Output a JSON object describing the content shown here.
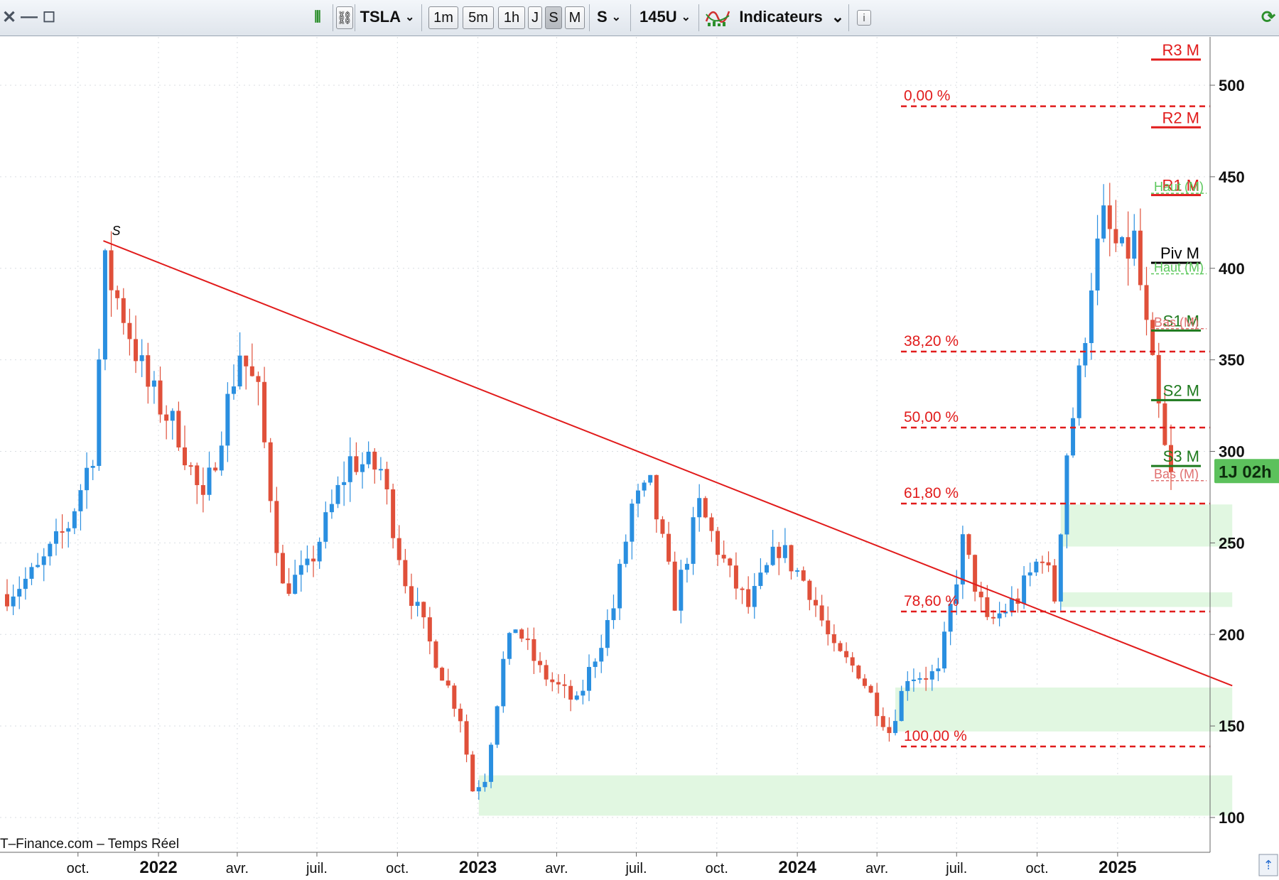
{
  "toolbar": {
    "symbol": "TSLA",
    "timeframes": [
      "1m",
      "5m",
      "1h",
      "J",
      "S",
      "M"
    ],
    "active_timeframe": "S",
    "period": "S",
    "units": "145U",
    "indicators_label": "Indicateurs",
    "info_label": "i"
  },
  "footer": {
    "source": "T–Finance.com – Temps Réel"
  },
  "chart_data": {
    "type": "candlestick",
    "y_axis": {
      "ticks": [
        100,
        150,
        200,
        250,
        300,
        350,
        400,
        450,
        500
      ],
      "range": [
        95,
        525
      ]
    },
    "x_axis": {
      "labels": [
        {
          "label": "oct.",
          "date": "2021-10-01",
          "bold": false
        },
        {
          "label": "2022",
          "date": "2022-01-01",
          "bold": true
        },
        {
          "label": "avr.",
          "date": "2022-04-01",
          "bold": false
        },
        {
          "label": "juil.",
          "date": "2022-07-01",
          "bold": false
        },
        {
          "label": "oct.",
          "date": "2022-10-01",
          "bold": false
        },
        {
          "label": "2023",
          "date": "2023-01-01",
          "bold": true
        },
        {
          "label": "avr.",
          "date": "2023-04-01",
          "bold": false
        },
        {
          "label": "juil.",
          "date": "2023-07-01",
          "bold": false
        },
        {
          "label": "oct.",
          "date": "2023-10-01",
          "bold": false
        },
        {
          "label": "2024",
          "date": "2024-01-01",
          "bold": true
        },
        {
          "label": "avr.",
          "date": "2024-04-01",
          "bold": false
        },
        {
          "label": "juil.",
          "date": "2024-07-01",
          "bold": false
        },
        {
          "label": "oct.",
          "date": "2024-10-01",
          "bold": false
        },
        {
          "label": "2025",
          "date": "2025-01-01",
          "bold": true
        }
      ]
    },
    "price_path": [
      [
        "2021-07-12",
        222
      ],
      [
        "2021-08-16",
        235
      ],
      [
        "2021-09-20",
        260
      ],
      [
        "2021-10-18",
        300
      ],
      [
        "2021-11-01",
        400
      ],
      [
        "2021-11-22",
        375
      ],
      [
        "2021-12-20",
        335
      ],
      [
        "2022-01-24",
        310
      ],
      [
        "2022-02-21",
        270
      ],
      [
        "2022-04-04",
        355
      ],
      [
        "2022-04-25",
        330
      ],
      [
        "2022-05-23",
        225
      ],
      [
        "2022-06-20",
        235
      ],
      [
        "2022-08-08",
        295
      ],
      [
        "2022-09-12",
        290
      ],
      [
        "2022-10-10",
        230
      ],
      [
        "2022-11-07",
        195
      ],
      [
        "2022-12-12",
        155
      ],
      [
        "2022-12-26",
        115
      ],
      [
        "2023-01-09",
        122
      ],
      [
        "2023-01-30",
        185
      ],
      [
        "2023-02-13",
        205
      ],
      [
        "2023-03-13",
        180
      ],
      [
        "2023-04-24",
        162
      ],
      [
        "2023-06-05",
        215
      ],
      [
        "2023-06-26",
        270
      ],
      [
        "2023-07-17",
        280
      ],
      [
        "2023-08-14",
        218
      ],
      [
        "2023-09-11",
        270
      ],
      [
        "2023-10-16",
        232
      ],
      [
        "2023-11-06",
        215
      ],
      [
        "2023-12-11",
        248
      ],
      [
        "2024-01-15",
        225
      ],
      [
        "2024-02-12",
        190
      ],
      [
        "2024-03-11",
        180
      ],
      [
        "2024-04-15",
        147
      ],
      [
        "2024-05-06",
        178
      ],
      [
        "2024-06-10",
        178
      ],
      [
        "2024-07-08",
        250
      ],
      [
        "2024-08-05",
        205
      ],
      [
        "2024-09-09",
        220
      ],
      [
        "2024-10-07",
        245
      ],
      [
        "2024-10-21",
        220
      ],
      [
        "2024-11-04",
        300
      ],
      [
        "2024-11-18",
        340
      ],
      [
        "2024-12-02",
        395
      ],
      [
        "2024-12-16",
        425
      ],
      [
        "2025-01-06",
        405
      ],
      [
        "2025-01-20",
        415
      ],
      [
        "2025-02-03",
        365
      ],
      [
        "2025-02-24",
        300
      ],
      [
        "2025-03-03",
        285
      ]
    ],
    "trendline": {
      "start": [
        "2021-10-30",
        415
      ],
      "end": [
        "2025-05-12",
        172
      ],
      "label": "S"
    },
    "fibonacci": [
      {
        "label": "0,00 %",
        "value": 488.5
      },
      {
        "label": "38,20 %",
        "value": 354.5
      },
      {
        "label": "50,00 %",
        "value": 313
      },
      {
        "label": "61,80 %",
        "value": 271.5
      },
      {
        "label": "78,60 %",
        "value": 212.5
      },
      {
        "label": "100,00 %",
        "value": 138.8
      }
    ],
    "pivots": [
      {
        "label": "R3 M",
        "value": 514,
        "color": "#e11b1b"
      },
      {
        "label": "R2 M",
        "value": 477,
        "color": "#e11b1b"
      },
      {
        "label": "R1 M",
        "value": 440,
        "color": "#e11b1b"
      },
      {
        "label": "Piv M",
        "value": 403,
        "color": "#000000"
      },
      {
        "label": "S1 M",
        "value": 366,
        "color": "#1e7a1e"
      },
      {
        "label": "S2 M",
        "value": 328,
        "color": "#1e7a1e"
      },
      {
        "label": "S3 M",
        "value": 292,
        "color": "#1e7a1e"
      }
    ],
    "hl_lines": [
      {
        "label": "Haut (M)",
        "value": 441,
        "color": "#5bc85b"
      },
      {
        "label": "Haut (M)",
        "value": 397,
        "color": "#5bc85b"
      },
      {
        "label": "Bas (M)",
        "value": 367,
        "color": "#e07070"
      },
      {
        "label": "Bas (M)",
        "value": 284,
        "color": "#e07070"
      }
    ],
    "zones": [
      {
        "from": "2023-01-02",
        "to": "2025-05-12",
        "low": 101,
        "high": 123
      },
      {
        "from": "2024-04-22",
        "to": "2025-05-12",
        "low": 147,
        "high": 171
      },
      {
        "from": "2024-10-28",
        "to": "2025-05-12",
        "low": 215,
        "high": 223
      },
      {
        "from": "2024-10-28",
        "to": "2025-05-12",
        "low": 248,
        "high": 271
      }
    ],
    "current_label": "1J 02h",
    "current_value": 290
  },
  "colors": {
    "up": "#2a8fe0",
    "down": "#e0503a",
    "trend": "#e11b1b",
    "zone": "#e1f7e1",
    "current_bg": "#5cc15c"
  }
}
